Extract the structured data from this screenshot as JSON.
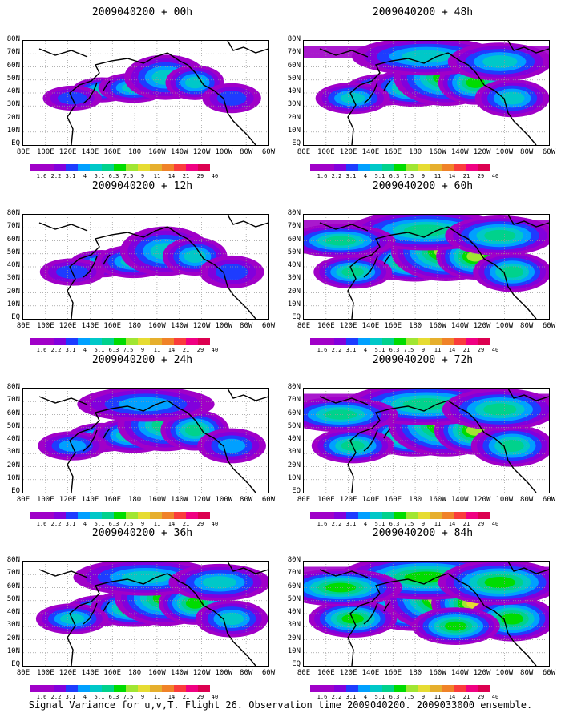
{
  "caption": "Signal Variance for u,v,T. Flight 26. Observation time 2009040200. 2009033000 ensemble.",
  "lat_labels": [
    "80N",
    "70N",
    "60N",
    "50N",
    "40N",
    "30N",
    "20N",
    "10N",
    "EQ"
  ],
  "lon_labels": [
    "80E",
    "100E",
    "120E",
    "140E",
    "160E",
    "180",
    "160W",
    "140W",
    "120W",
    "100W",
    "80W",
    "60W"
  ],
  "colorbar": {
    "levels": [
      "1.6",
      "2.2",
      "3.1",
      "4",
      "5.1",
      "6.3",
      "7.5",
      "9",
      "11",
      "14",
      "21",
      "29",
      "40"
    ],
    "colors": [
      "#a000c8",
      "#8200dc",
      "#1e3cff",
      "#00a0ff",
      "#00c8c8",
      "#00d28c",
      "#00dc00",
      "#a0e632",
      "#e6dc32",
      "#e6af2d",
      "#f08228",
      "#fa3c3c",
      "#f00082"
    ]
  },
  "panels": [
    {
      "title": "2009040200 + 00h",
      "col": 0,
      "row": 0,
      "intensity": 0.25
    },
    {
      "title": "2009040200 + 12h",
      "col": 0,
      "row": 1,
      "intensity": 0.4
    },
    {
      "title": "2009040200 + 24h",
      "col": 0,
      "row": 2,
      "intensity": 0.5
    },
    {
      "title": "2009040200 + 36h",
      "col": 0,
      "row": 3,
      "intensity": 0.6
    },
    {
      "title": "2009040200 + 48h",
      "col": 1,
      "row": 0,
      "intensity": 0.65
    },
    {
      "title": "2009040200 + 60h",
      "col": 1,
      "row": 1,
      "intensity": 0.75
    },
    {
      "title": "2009040200 + 72h",
      "col": 1,
      "row": 2,
      "intensity": 0.85
    },
    {
      "title": "2009040200 + 84h",
      "col": 1,
      "row": 3,
      "intensity": 1.0
    }
  ],
  "chart_data": {
    "type": "heatmap",
    "title": "Signal Variance for u,v,T. Flight 26. Observation time 2009040200. 2009033000 ensemble.",
    "x_axis": "longitude",
    "y_axis": "latitude",
    "xlim": [
      "80E",
      "60W"
    ],
    "ylim": [
      "EQ",
      "80N"
    ],
    "grid": true,
    "legend_placement": "bottom",
    "contour_levels": [
      1.6,
      2.2,
      3.1,
      4,
      5.1,
      6.3,
      7.5,
      9,
      11,
      14,
      21,
      29,
      40
    ],
    "series": [
      {
        "name": "2009040200 + 00h"
      },
      {
        "name": "2009040200 + 12h"
      },
      {
        "name": "2009040200 + 24h"
      },
      {
        "name": "2009040200 + 36h"
      },
      {
        "name": "2009040200 + 48h"
      },
      {
        "name": "2009040200 + 60h"
      },
      {
        "name": "2009040200 + 72h"
      },
      {
        "name": "2009040200 + 84h"
      }
    ]
  }
}
